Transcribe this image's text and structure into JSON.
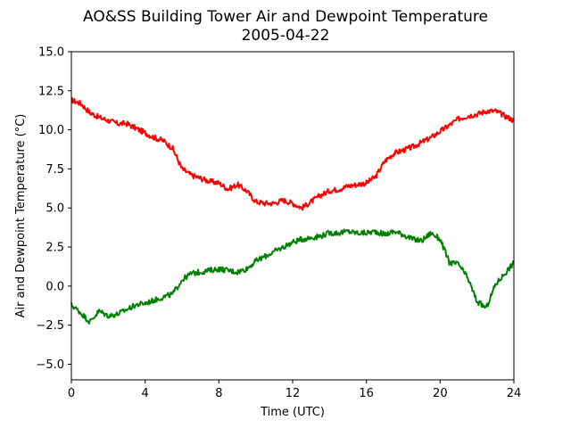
{
  "chart_data": {
    "type": "line",
    "title": "AO&SS Building Tower Air and Dewpoint Temperature",
    "subtitle": "2005-04-22",
    "xlabel": "Time (UTC)",
    "ylabel": "Air and Dewpoint Temperature (°C)",
    "xlim": [
      0,
      24
    ],
    "ylim": [
      -6,
      15
    ],
    "xticks": [
      0,
      4,
      8,
      12,
      16,
      20,
      24
    ],
    "xtick_labels": [
      "0",
      "4",
      "8",
      "12",
      "16",
      "20",
      "24"
    ],
    "yticks": [
      -5,
      -2.5,
      0,
      2.5,
      5,
      7.5,
      10,
      12.5,
      15
    ],
    "ytick_labels": [
      "−5.0",
      "−2.5",
      "0.0",
      "2.5",
      "5.0",
      "7.5",
      "10.0",
      "12.5",
      "15.0"
    ],
    "grid": false,
    "series": [
      {
        "color": "#ff0000",
        "x": [
          0,
          0.5,
          1,
          1.5,
          2,
          2.5,
          3,
          3.5,
          4,
          4.5,
          5,
          5.5,
          6,
          6.5,
          7,
          7.5,
          8,
          8.5,
          9,
          9.5,
          10,
          10.5,
          11,
          11.5,
          12,
          12.5,
          13,
          13.5,
          14,
          14.5,
          15,
          15.5,
          16,
          16.5,
          17,
          17.5,
          18,
          18.5,
          19,
          19.5,
          20,
          20.5,
          21,
          21.5,
          22,
          22.5,
          23,
          23.5,
          24
        ],
        "values": [
          11.9,
          11.7,
          11.1,
          10.8,
          10.6,
          10.4,
          10.4,
          10.1,
          9.8,
          9.5,
          9.3,
          8.8,
          7.5,
          7.1,
          6.9,
          6.7,
          6.6,
          6.2,
          6.5,
          6.1,
          5.4,
          5.3,
          5.3,
          5.5,
          5.3,
          5.0,
          5.4,
          5.8,
          6.1,
          6.2,
          6.4,
          6.5,
          6.6,
          7.0,
          8.0,
          8.5,
          8.7,
          8.9,
          9.2,
          9.5,
          9.9,
          10.3,
          10.7,
          10.9,
          11.0,
          11.2,
          11.2,
          10.9,
          10.6
        ]
      },
      {
        "color": "#008000",
        "x": [
          0,
          0.5,
          1,
          1.5,
          2,
          2.5,
          3,
          3.5,
          4,
          4.5,
          5,
          5.5,
          6,
          6.5,
          7,
          7.5,
          8,
          8.5,
          9,
          9.5,
          10,
          10.5,
          11,
          11.5,
          12,
          12.5,
          13,
          13.5,
          14,
          14.5,
          15,
          15.5,
          16,
          16.5,
          17,
          17.5,
          18,
          18.5,
          19,
          19.5,
          20,
          20.5,
          21,
          21.5,
          22,
          22.5,
          23,
          23.5,
          24
        ],
        "values": [
          -1.2,
          -1.7,
          -2.3,
          -1.6,
          -1.9,
          -1.8,
          -1.5,
          -1.2,
          -1.1,
          -0.9,
          -0.7,
          -0.5,
          0.4,
          0.8,
          0.9,
          1.0,
          1.1,
          1.0,
          0.9,
          1.1,
          1.6,
          1.9,
          2.2,
          2.5,
          2.8,
          3.0,
          3.1,
          3.2,
          3.4,
          3.4,
          3.5,
          3.4,
          3.4,
          3.5,
          3.3,
          3.5,
          3.3,
          3.0,
          2.9,
          3.4,
          3.0,
          1.5,
          1.4,
          0.5,
          -1.0,
          -1.4,
          0.1,
          0.8,
          1.5
        ]
      }
    ]
  }
}
